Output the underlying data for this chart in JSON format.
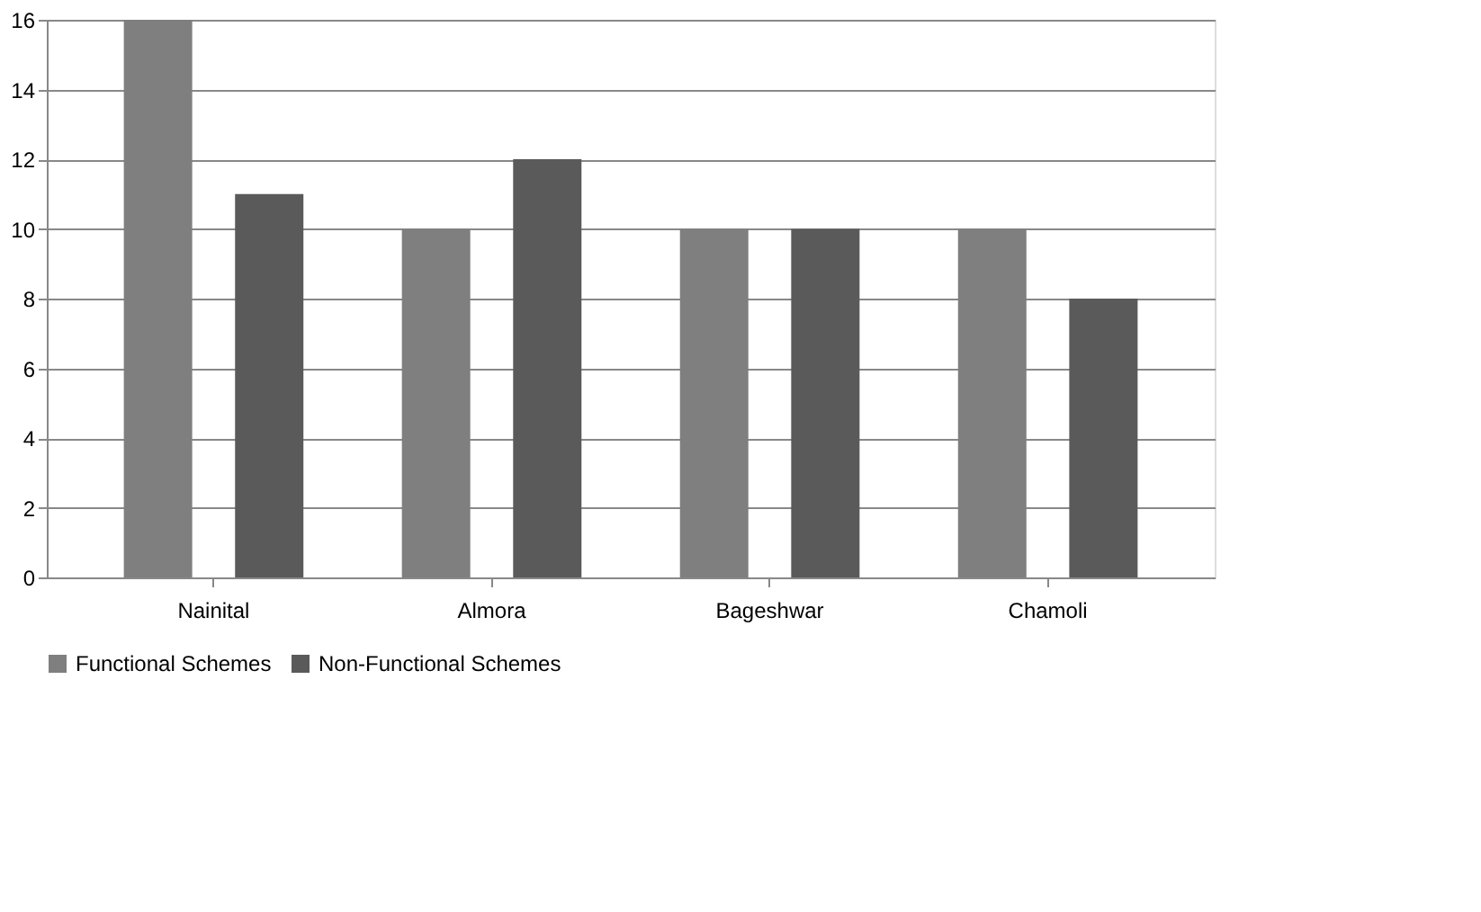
{
  "chart_data": {
    "type": "bar",
    "categories": [
      "Nainital",
      "Almora",
      "Bageshwar",
      "Chamoli"
    ],
    "series": [
      {
        "name": "Functional Schemes",
        "color": "#7f7f7f",
        "values": [
          16,
          10,
          10,
          10
        ]
      },
      {
        "name": "Non-Functional Schemes",
        "color": "#5a5a5a",
        "values": [
          11,
          12,
          10,
          8
        ]
      }
    ],
    "ylim": [
      0,
      16
    ],
    "yticks": [
      0,
      2,
      4,
      6,
      8,
      10,
      12,
      14,
      16
    ],
    "grid": "y",
    "legend": "bottom"
  }
}
